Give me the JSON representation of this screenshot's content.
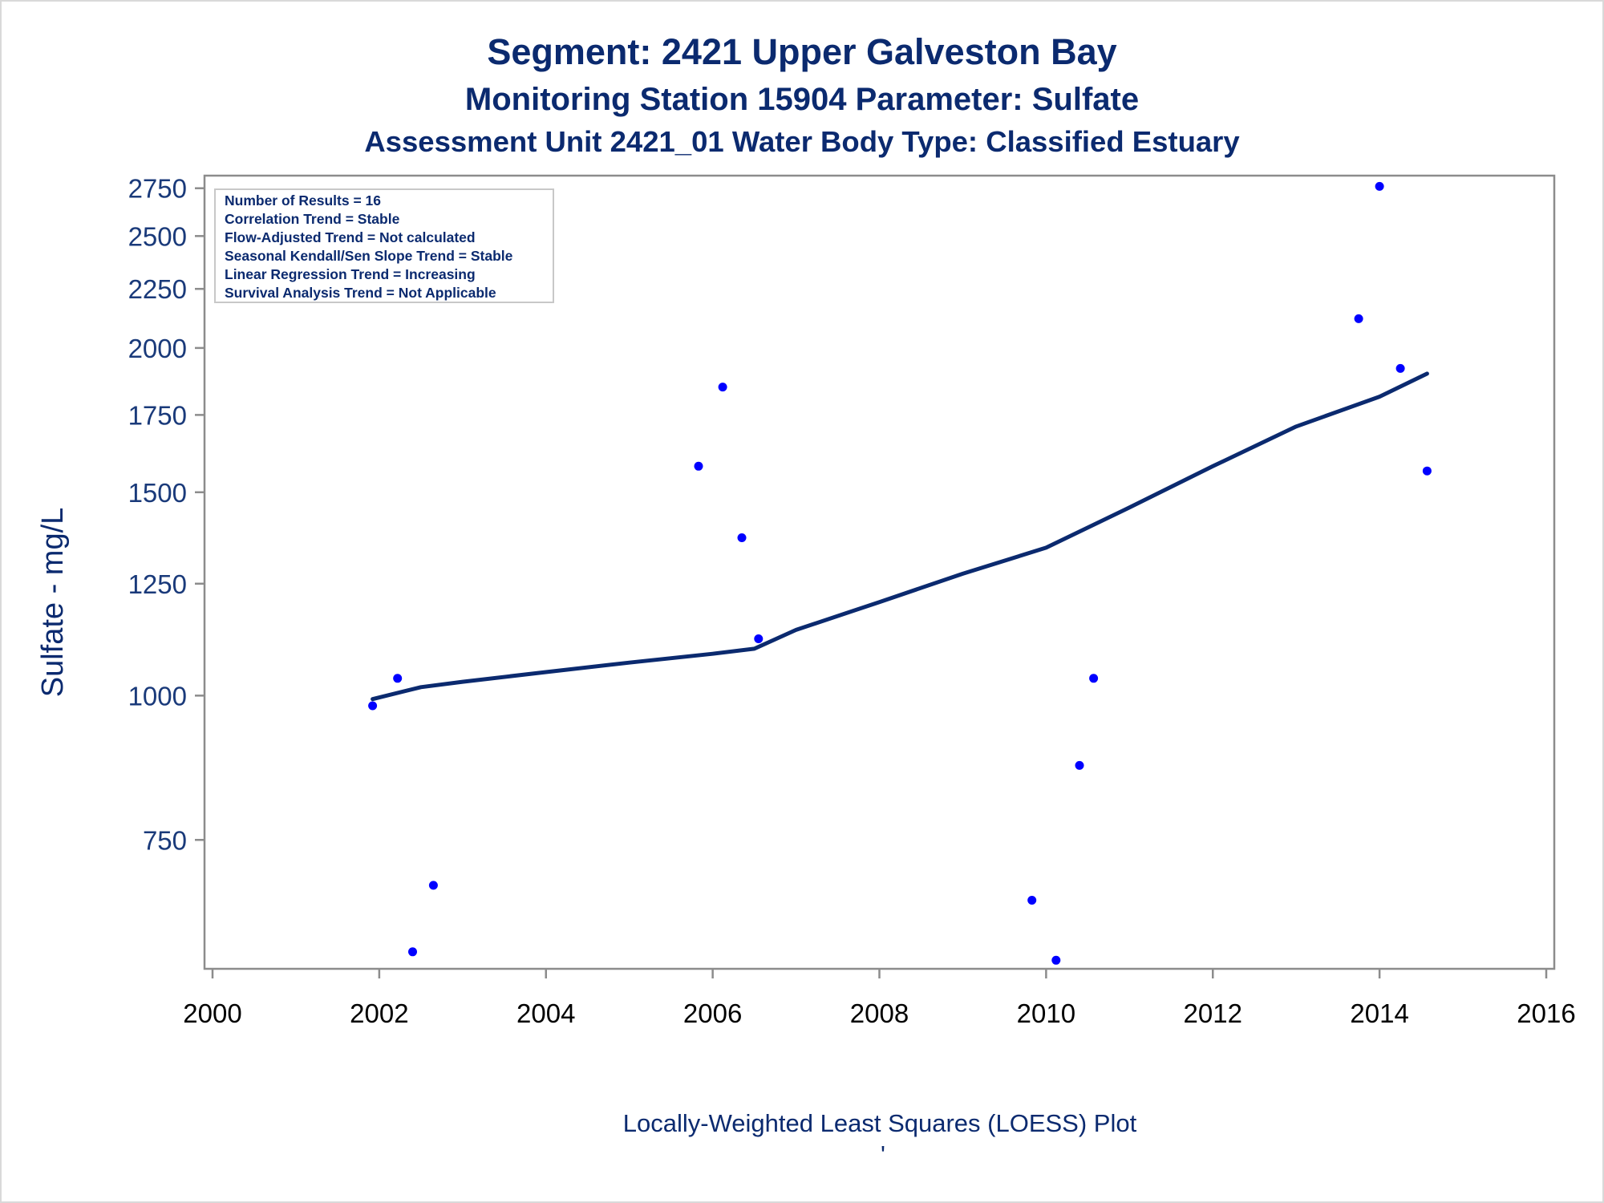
{
  "chart_data": {
    "type": "scatter",
    "title": "Segment: 2421  Upper Galveston Bay",
    "subtitle": "Monitoring Station 15904 Parameter: Sulfate",
    "subtitle2": "Assessment Unit 2421_01   Water Body Type: Classified Estuary",
    "xlabel": "",
    "ylabel": "Sulfate - mg/L",
    "footer": "Locally-Weighted Least Squares (LOESS) Plot",
    "footer_mark": "'",
    "y_scale": "log",
    "xlim": [
      2000,
      2016
    ],
    "ylim": [
      580,
      2820
    ],
    "x_ticks": [
      "2000",
      "2002",
      "2004",
      "2006",
      "2008",
      "2010",
      "2012",
      "2014",
      "2016"
    ],
    "y_ticks": [
      "750",
      "1000",
      "1250",
      "1500",
      "1750",
      "2000",
      "2250",
      "2500",
      "2750"
    ],
    "grid": false,
    "legend_placement": "top-left",
    "info_box": [
      "Number of Results = 16",
      "Correlation Trend = Stable",
      "Flow-Adjusted Trend = Not calculated",
      "Seasonal Kendall/Sen Slope Trend = Stable",
      "Linear Regression Trend = Increasing",
      "Survival Analysis Trend = Not Applicable"
    ],
    "points": [
      {
        "x": 2001.92,
        "y": 980
      },
      {
        "x": 2002.22,
        "y": 1035
      },
      {
        "x": 2002.4,
        "y": 600
      },
      {
        "x": 2002.65,
        "y": 685
      },
      {
        "x": 2005.83,
        "y": 1580
      },
      {
        "x": 2006.12,
        "y": 1850
      },
      {
        "x": 2006.35,
        "y": 1370
      },
      {
        "x": 2006.55,
        "y": 1120
      },
      {
        "x": 2009.83,
        "y": 665
      },
      {
        "x": 2010.12,
        "y": 590
      },
      {
        "x": 2010.4,
        "y": 870
      },
      {
        "x": 2010.57,
        "y": 1035
      },
      {
        "x": 2013.75,
        "y": 2120
      },
      {
        "x": 2014.0,
        "y": 2760
      },
      {
        "x": 2014.25,
        "y": 1920
      },
      {
        "x": 2014.57,
        "y": 1565
      }
    ],
    "loess": [
      {
        "x": 2001.92,
        "y": 993
      },
      {
        "x": 2002.5,
        "y": 1017
      },
      {
        "x": 2003.0,
        "y": 1028
      },
      {
        "x": 2004.0,
        "y": 1048
      },
      {
        "x": 2005.0,
        "y": 1068
      },
      {
        "x": 2006.0,
        "y": 1087
      },
      {
        "x": 2006.5,
        "y": 1098
      },
      {
        "x": 2007.0,
        "y": 1140
      },
      {
        "x": 2008.0,
        "y": 1205
      },
      {
        "x": 2009.0,
        "y": 1275
      },
      {
        "x": 2010.0,
        "y": 1343
      },
      {
        "x": 2011.0,
        "y": 1455
      },
      {
        "x": 2012.0,
        "y": 1580
      },
      {
        "x": 2013.0,
        "y": 1710
      },
      {
        "x": 2014.0,
        "y": 1815
      },
      {
        "x": 2014.57,
        "y": 1900
      }
    ],
    "colors": {
      "points": "#0000ff",
      "loess": "#0b2a6f",
      "text": "#0b2a6f",
      "axis": "#8c8c8c"
    }
  }
}
